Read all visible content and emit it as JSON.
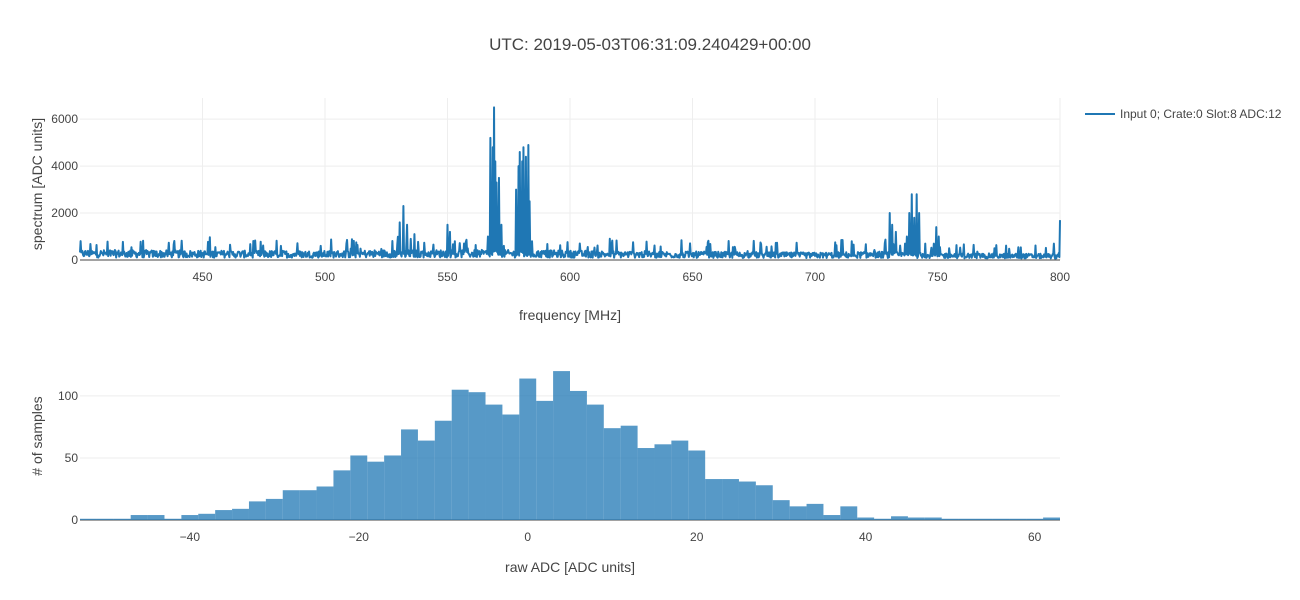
{
  "title": "UTC: 2019-05-03T06:31:09.240429+00:00",
  "colors": {
    "line": "#1f77b4",
    "bar": "#1f77b4",
    "grid": "#eeeeee",
    "text": "#444444"
  },
  "chart_data": [
    {
      "type": "line",
      "xlabel": "frequency [MHz]",
      "ylabel": "spectrum [ADC units]",
      "xlim": [
        400,
        800
      ],
      "ylim": [
        0,
        6900
      ],
      "x_ticks": [
        450,
        500,
        550,
        600,
        650,
        700,
        750,
        800
      ],
      "y_ticks": [
        0,
        2000,
        4000,
        6000
      ],
      "grid": true,
      "legend": "top-right",
      "series": [
        {
          "name": "Input 0; Crate:0 Slot:8 ADC:12",
          "baseline": [
            [
              400,
              300
            ],
            [
              450,
              280
            ],
            [
              500,
              270
            ],
            [
              525,
              300
            ],
            [
              550,
              300
            ],
            [
              560,
              300
            ],
            [
              600,
              280
            ],
            [
              650,
              250
            ],
            [
              700,
              220
            ],
            [
              725,
              250
            ],
            [
              760,
              200
            ],
            [
              800,
              180
            ]
          ],
          "peaks": [
            [
              530.5,
              1600
            ],
            [
              532,
              2300
            ],
            [
              533.5,
              1500
            ],
            [
              535,
              900
            ],
            [
              536.5,
              1100
            ],
            [
              550,
              1500
            ],
            [
              551,
              1200
            ],
            [
              553,
              800
            ],
            [
              566.5,
              1000
            ],
            [
              567.5,
              5200
            ],
            [
              568.5,
              4800
            ],
            [
              569,
              6500
            ],
            [
              569.5,
              4200
            ],
            [
              570.2,
              3300
            ],
            [
              570.8,
              3500
            ],
            [
              572,
              1500
            ],
            [
              573,
              600
            ],
            [
              578,
              3000
            ],
            [
              578.8,
              4000
            ],
            [
              579.6,
              4600
            ],
            [
              580.4,
              4200
            ],
            [
              581.2,
              4800
            ],
            [
              582,
              4400
            ],
            [
              582.8,
              4900
            ],
            [
              583.6,
              2500
            ],
            [
              584.5,
              800
            ],
            [
              730.5,
              2000
            ],
            [
              731.5,
              1500
            ],
            [
              733,
              1200
            ],
            [
              737.5,
              1000
            ],
            [
              738.5,
              2000
            ],
            [
              739.5,
              2800
            ],
            [
              740.5,
              1800
            ],
            [
              741.5,
              2800
            ],
            [
              742.5,
              2000
            ],
            [
              745,
              700
            ],
            [
              748.5,
              700
            ],
            [
              749.5,
              1400
            ],
            [
              750.5,
              1000
            ],
            [
              799.5,
              300
            ],
            [
              800,
              1700
            ]
          ]
        }
      ]
    },
    {
      "type": "bar",
      "xlabel": "raw ADC [ADC units]",
      "ylabel": "# of samples",
      "xlim": [
        -53,
        63
      ],
      "ylim": [
        0,
        137
      ],
      "x_ticks": [
        -40,
        -20,
        0,
        20,
        40,
        60
      ],
      "x_tick_labels": [
        "−40",
        "−20",
        "0",
        "20",
        "40",
        "60"
      ],
      "y_ticks": [
        0,
        50,
        100
      ],
      "grid": true,
      "bin_width": 2,
      "x": [
        -53,
        -51,
        -49,
        -47,
        -45,
        -43,
        -41,
        -39,
        -37,
        -35,
        -33,
        -31,
        -29,
        -27,
        -25,
        -23,
        -21,
        -19,
        -17,
        -15,
        -13,
        -11,
        -9,
        -7,
        -5,
        -3,
        -1,
        1,
        3,
        5,
        7,
        9,
        11,
        13,
        15,
        17,
        19,
        21,
        23,
        25,
        27,
        29,
        31,
        33,
        35,
        37,
        39,
        41,
        43,
        45,
        47,
        49,
        51,
        53,
        55,
        57,
        59,
        61
      ],
      "values": [
        1,
        1,
        1,
        4,
        4,
        1,
        4,
        5,
        8,
        9,
        15,
        17,
        24,
        24,
        27,
        40,
        52,
        47,
        52,
        73,
        64,
        80,
        105,
        103,
        93,
        85,
        114,
        96,
        120,
        104,
        93,
        74,
        76,
        58,
        61,
        64,
        56,
        33,
        33,
        31,
        28,
        16,
        11,
        13,
        4,
        11,
        2,
        1,
        3,
        2,
        2,
        1,
        1,
        1,
        1,
        1,
        1,
        2
      ]
    }
  ]
}
